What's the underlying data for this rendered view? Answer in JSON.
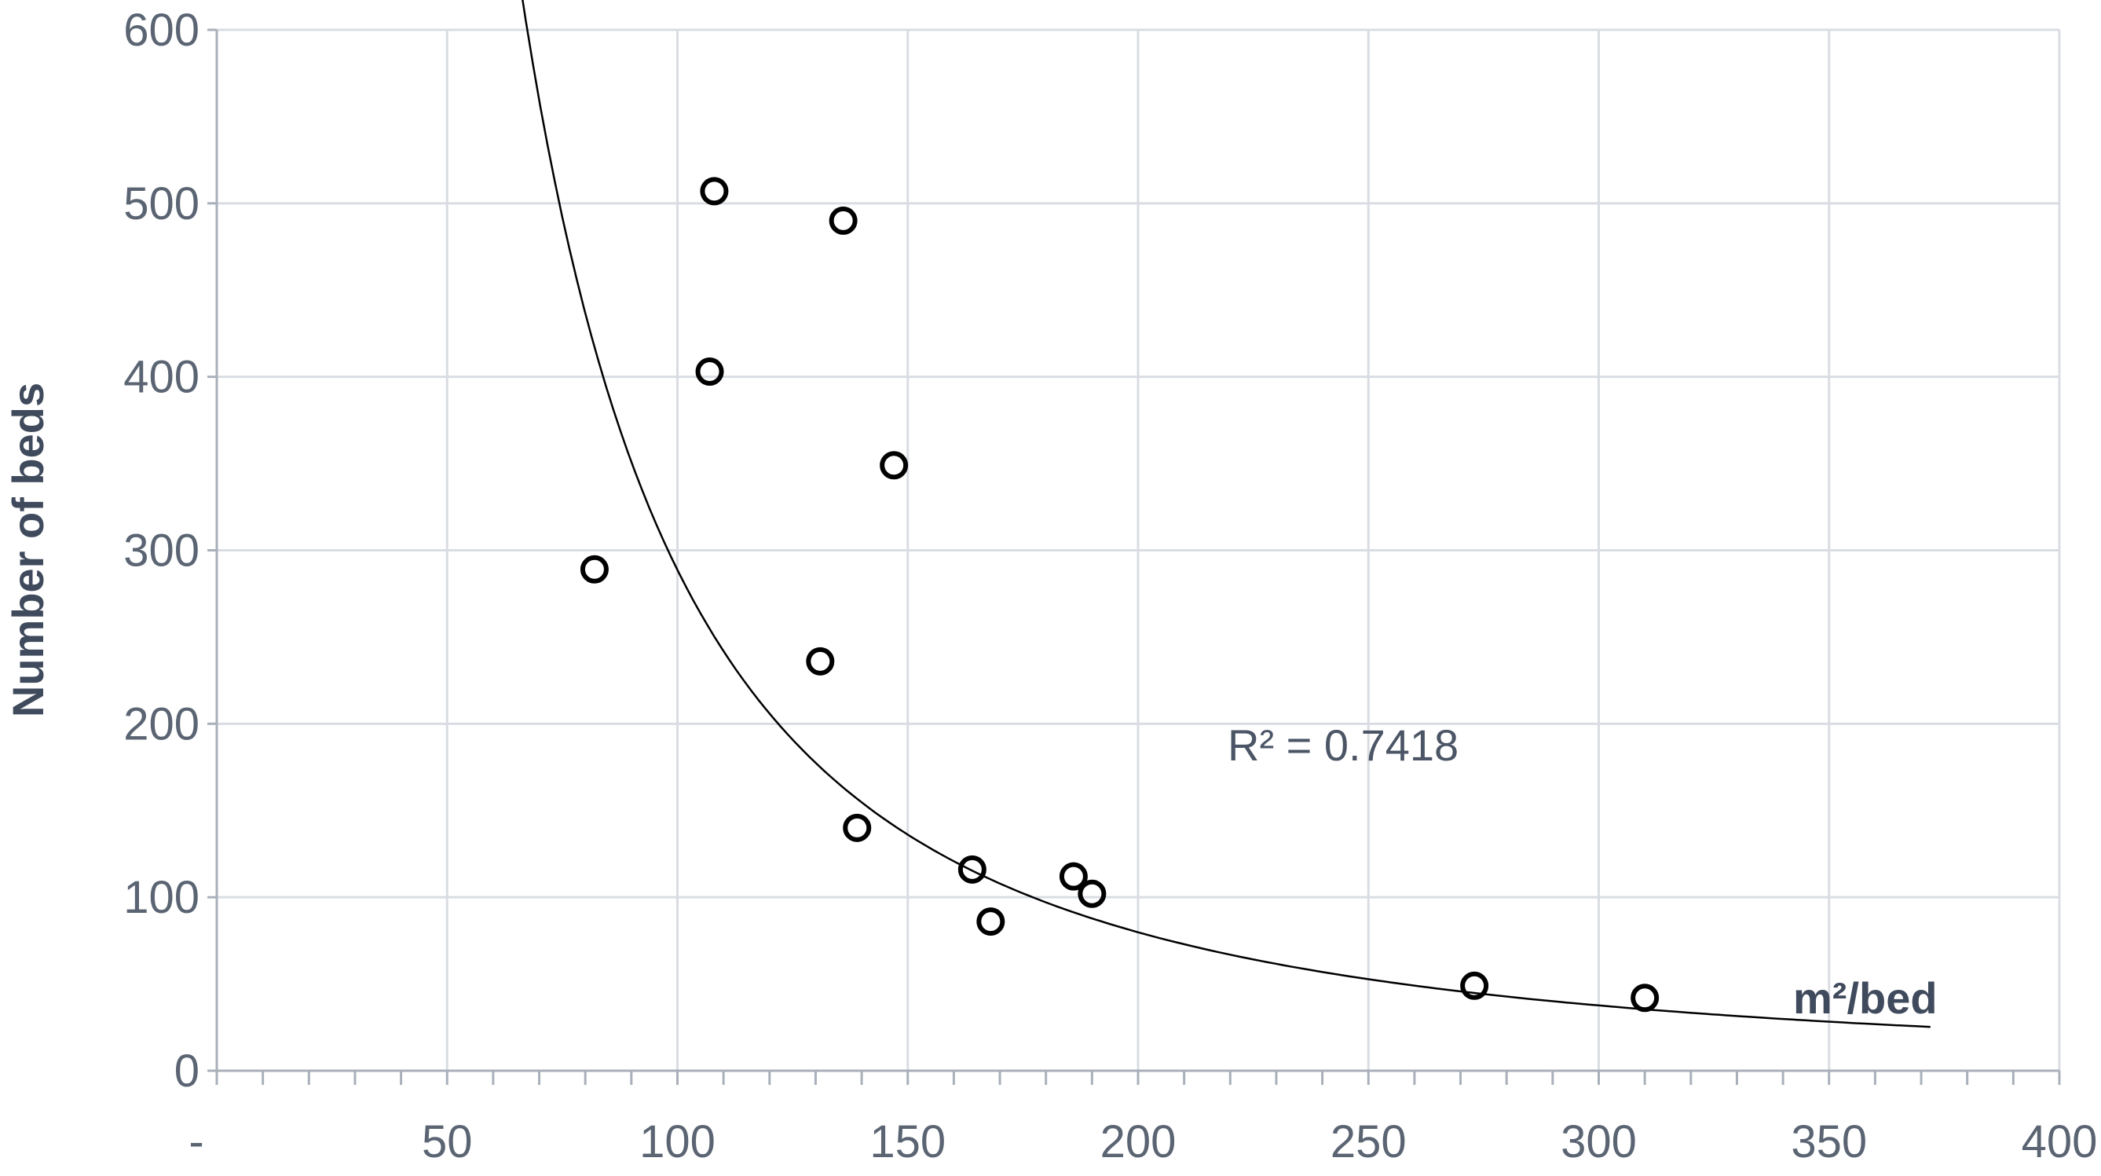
{
  "chart_data": {
    "type": "scatter",
    "title": "",
    "xlabel": "",
    "ylabel": "Number of beds",
    "x_unit_label": "m²/bed",
    "xlim": [
      0,
      400
    ],
    "ylim": [
      0,
      600
    ],
    "x_ticks": [
      0,
      50,
      100,
      150,
      200,
      250,
      300,
      350,
      400
    ],
    "x_tick_labels": [
      "-",
      "50",
      "100",
      "150",
      "200",
      "250",
      "300",
      "350",
      "400"
    ],
    "y_ticks": [
      0,
      100,
      200,
      300,
      400,
      500,
      600
    ],
    "y_tick_labels": [
      "0",
      "100",
      "200",
      "300",
      "400",
      "500",
      "600"
    ],
    "grid": true,
    "legend": "none",
    "annotation": "R² = 0.7418",
    "series": [
      {
        "points": [
          {
            "x": 82,
            "y": 289
          },
          {
            "x": 107,
            "y": 403
          },
          {
            "x": 108,
            "y": 507
          },
          {
            "x": 131,
            "y": 236
          },
          {
            "x": 136,
            "y": 490
          },
          {
            "x": 139,
            "y": 140
          },
          {
            "x": 147,
            "y": 349
          },
          {
            "x": 164,
            "y": 116
          },
          {
            "x": 168,
            "y": 86
          },
          {
            "x": 186,
            "y": 112
          },
          {
            "x": 190,
            "y": 102
          },
          {
            "x": 273,
            "y": 49
          },
          {
            "x": 310,
            "y": 42
          }
        ],
        "marker": "open-circle",
        "color": "#000000"
      }
    ],
    "trendline": {
      "type": "power",
      "x_range": [
        56,
        372
      ],
      "through_points": [
        {
          "x": 56,
          "y": 560
        },
        {
          "x": 100,
          "y": 340
        },
        {
          "x": 150,
          "y": 200
        },
        {
          "x": 200,
          "y": 115
        },
        {
          "x": 300,
          "y": 36
        },
        {
          "x": 372,
          "y": 16
        }
      ],
      "color": "#000000"
    },
    "colors": {
      "grid": "#d9dde3",
      "axis": "#a9b0ba",
      "tick_text": "#5a6472",
      "title_text": "#3f4a5c"
    }
  }
}
